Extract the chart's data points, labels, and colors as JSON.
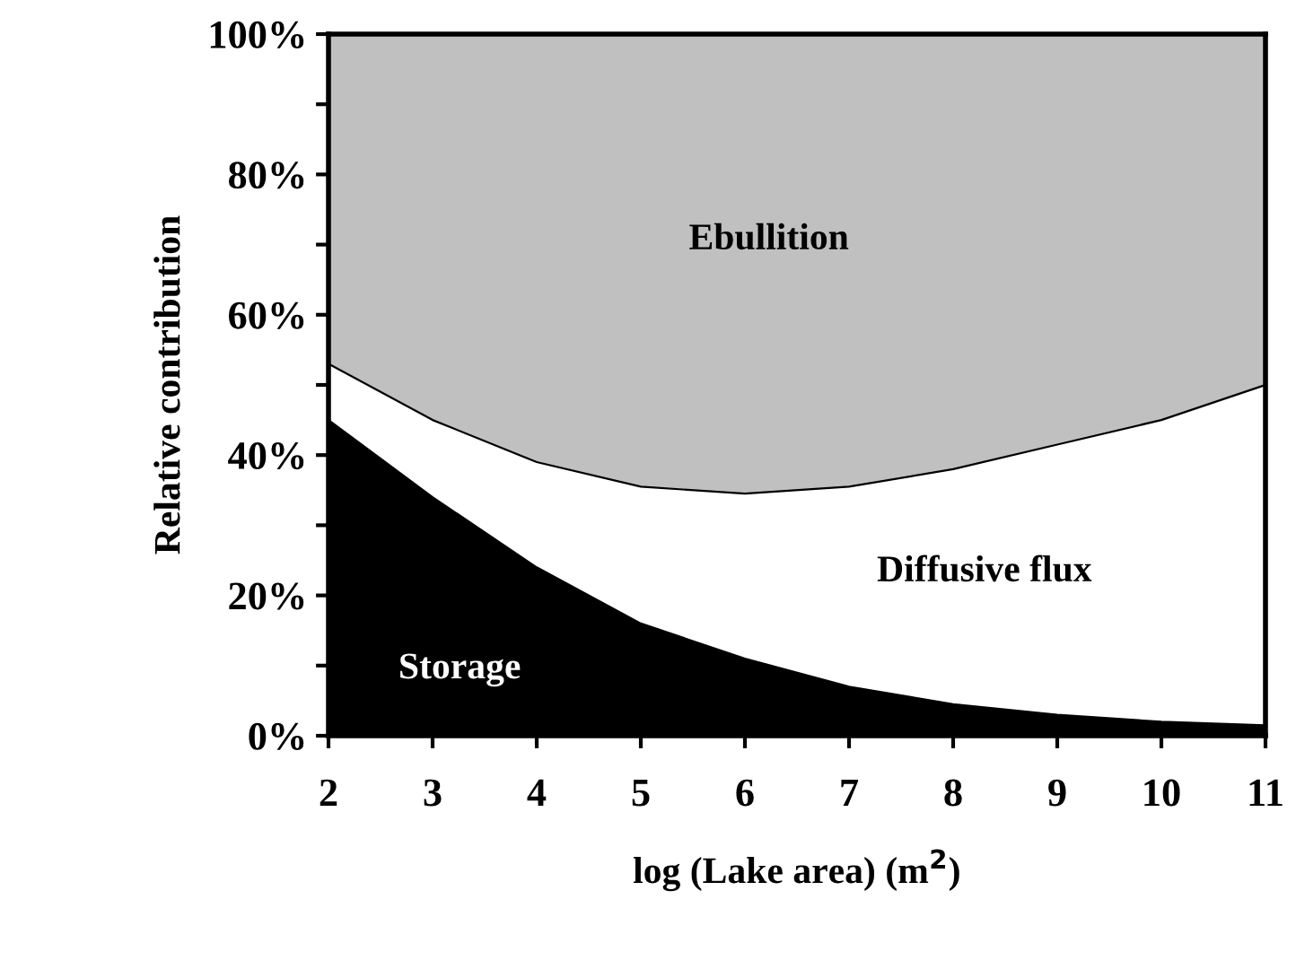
{
  "chart_data": {
    "type": "area",
    "stacked": true,
    "xlabel": "log (Lake area) (m$^{2}$)",
    "ylabel": "Relative contribution",
    "x": [
      2,
      3,
      4,
      5,
      6,
      7,
      8,
      9,
      10,
      11
    ],
    "series": [
      {
        "name": "Storage",
        "color": "#000000",
        "values": [
          45,
          34,
          24,
          16,
          11,
          7,
          4.5,
          3,
          2,
          1.5
        ]
      },
      {
        "name": "Diffusive flux",
        "color": "#ffffff",
        "values": [
          8,
          11,
          15,
          19.5,
          23.5,
          28.5,
          33.5,
          38.5,
          43,
          48.5
        ]
      },
      {
        "name": "Ebullition",
        "color": "#c0c0c0",
        "values": [
          47,
          55,
          61,
          64.5,
          65.5,
          64.5,
          62,
          58.5,
          55,
          50
        ]
      }
    ],
    "xlim": [
      2,
      11
    ],
    "ylim": [
      0,
      100
    ],
    "xticks": [
      2,
      3,
      4,
      5,
      6,
      7,
      8,
      9,
      10,
      11
    ],
    "yticks": [
      {
        "value": 0,
        "label": "0%"
      },
      {
        "value": 10,
        "label": null
      },
      {
        "value": 20,
        "label": "20%"
      },
      {
        "value": 30,
        "label": null
      },
      {
        "value": 40,
        "label": "40%"
      },
      {
        "value": 50,
        "label": null
      },
      {
        "value": 60,
        "label": "60%"
      },
      {
        "value": 70,
        "label": null
      },
      {
        "value": 80,
        "label": "80%"
      },
      {
        "value": 90,
        "label": null
      },
      {
        "value": 100,
        "label": "100%"
      }
    ],
    "grid": false,
    "legend": false
  }
}
